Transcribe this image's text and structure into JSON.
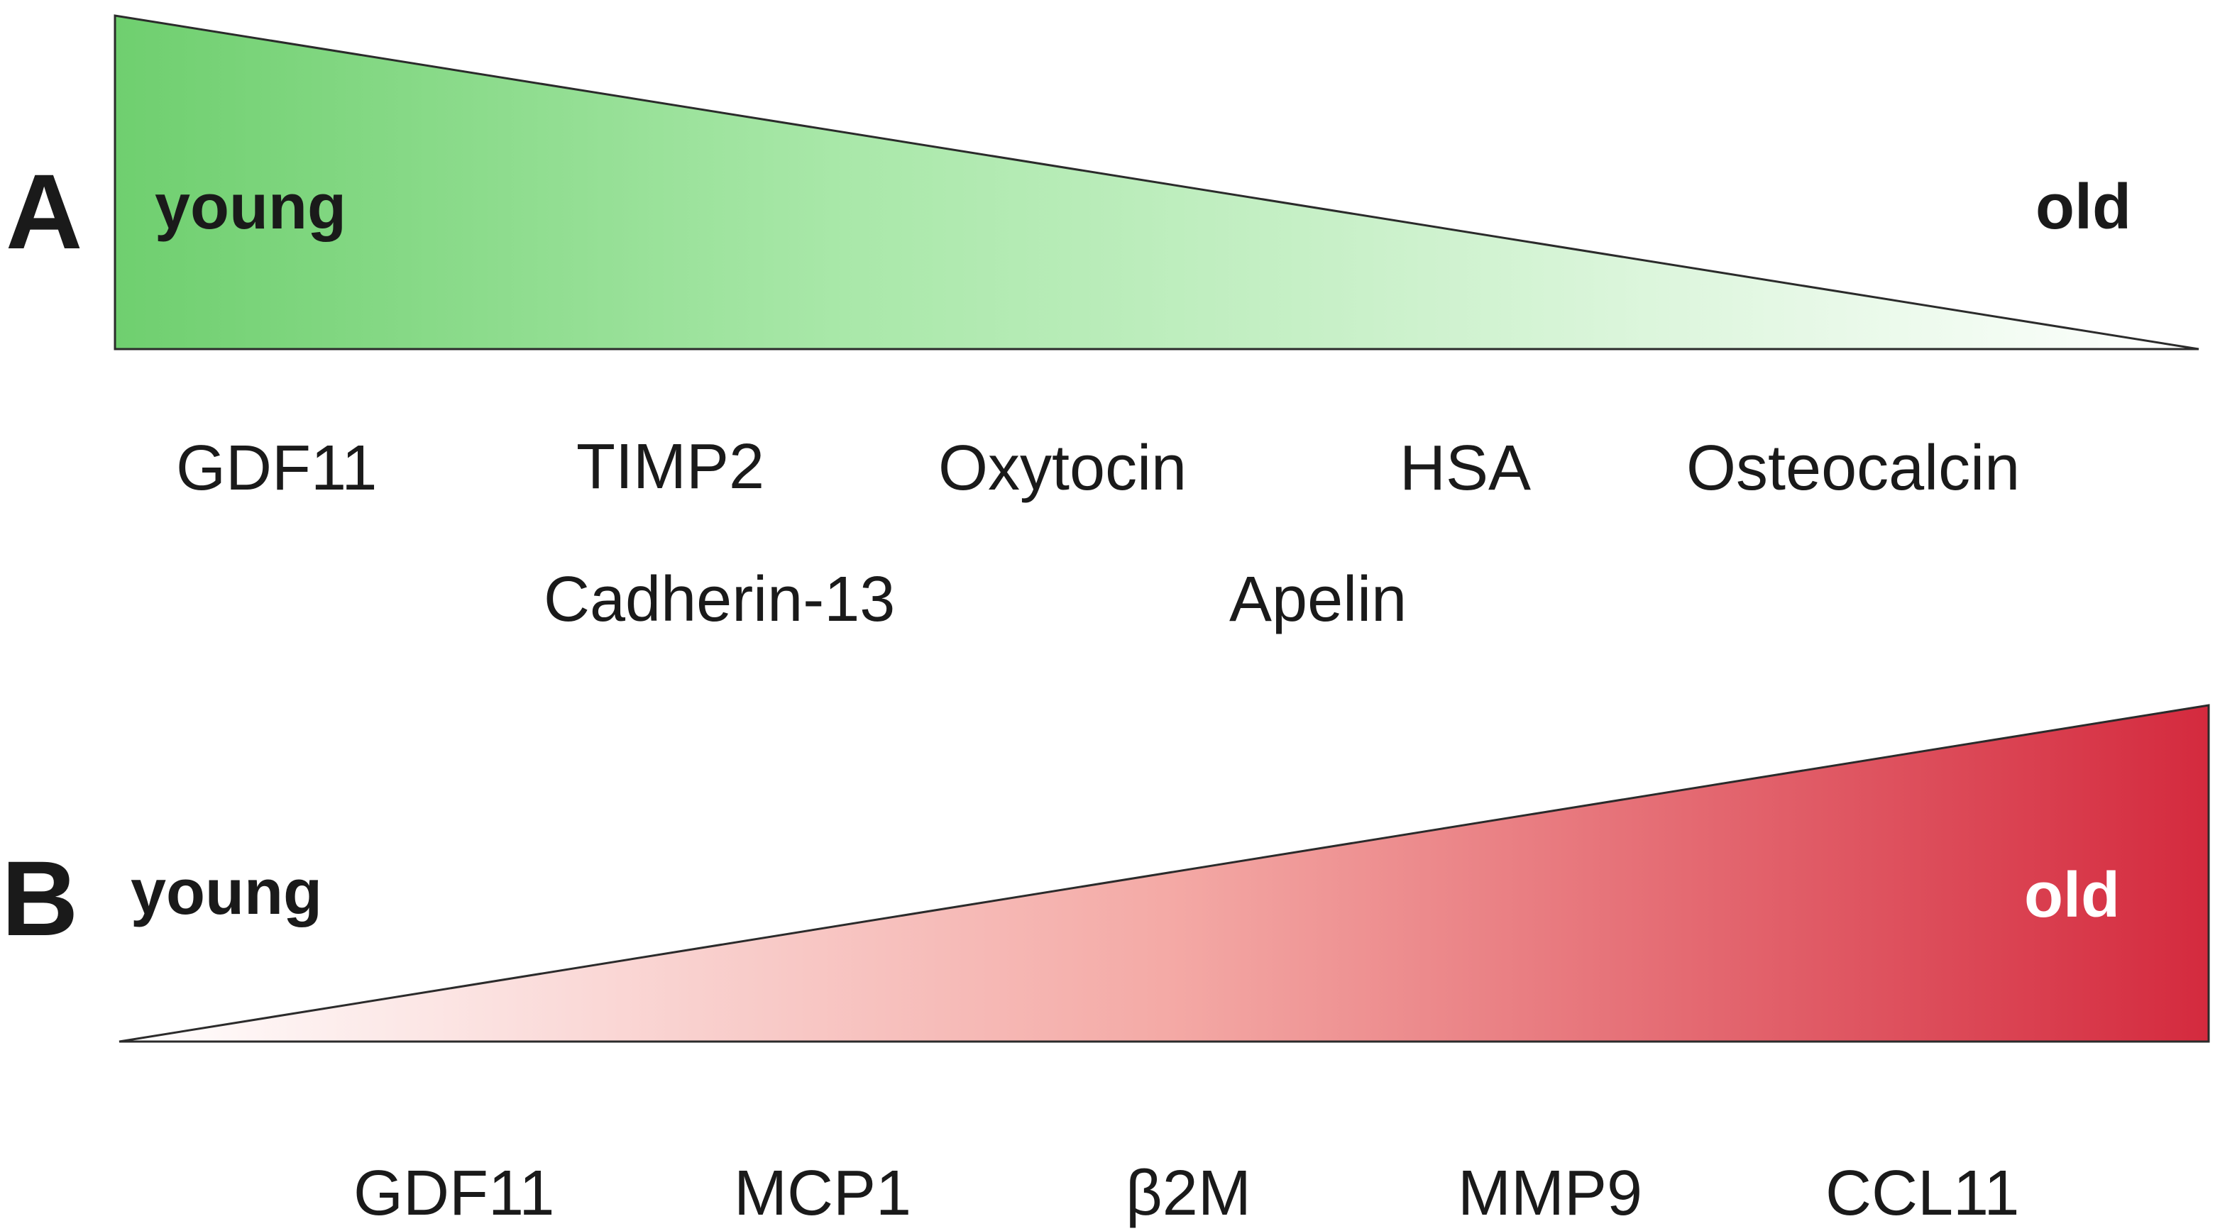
{
  "panel_a": {
    "letter": "A",
    "young_label": "young",
    "old_label": "old",
    "gradient_colors": [
      "#6fcf6f",
      "#ffffff"
    ],
    "markers_row1": [
      "GDF11",
      "TIMP2",
      "Oxytocin",
      "HSA",
      "Osteocalcin"
    ],
    "markers_row2": [
      "Cadherin-13",
      "Apelin"
    ]
  },
  "panel_b": {
    "letter": "B",
    "young_label": "young",
    "old_label": "old",
    "gradient_colors": [
      "#ffffff",
      "#d42a3e"
    ],
    "markers_row1": [
      "GDF11",
      "MCP1",
      "β2M",
      "MMP9",
      "CCL11"
    ]
  }
}
